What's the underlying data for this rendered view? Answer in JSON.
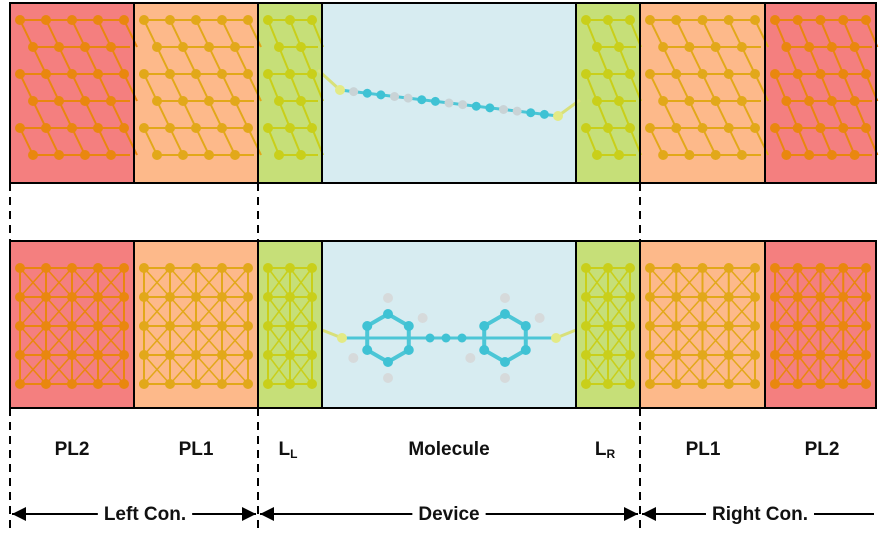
{
  "regions": [
    {
      "label": "PL2"
    },
    {
      "label": "PL1"
    },
    {
      "label": "L",
      "subscript": "L"
    },
    {
      "label": "Molecule"
    },
    {
      "label": "L",
      "subscript": "R"
    },
    {
      "label": "PL1"
    },
    {
      "label": "PL2"
    }
  ],
  "sections": [
    {
      "label": "Left Con."
    },
    {
      "label": "Device"
    },
    {
      "label": "Right Con."
    }
  ]
}
